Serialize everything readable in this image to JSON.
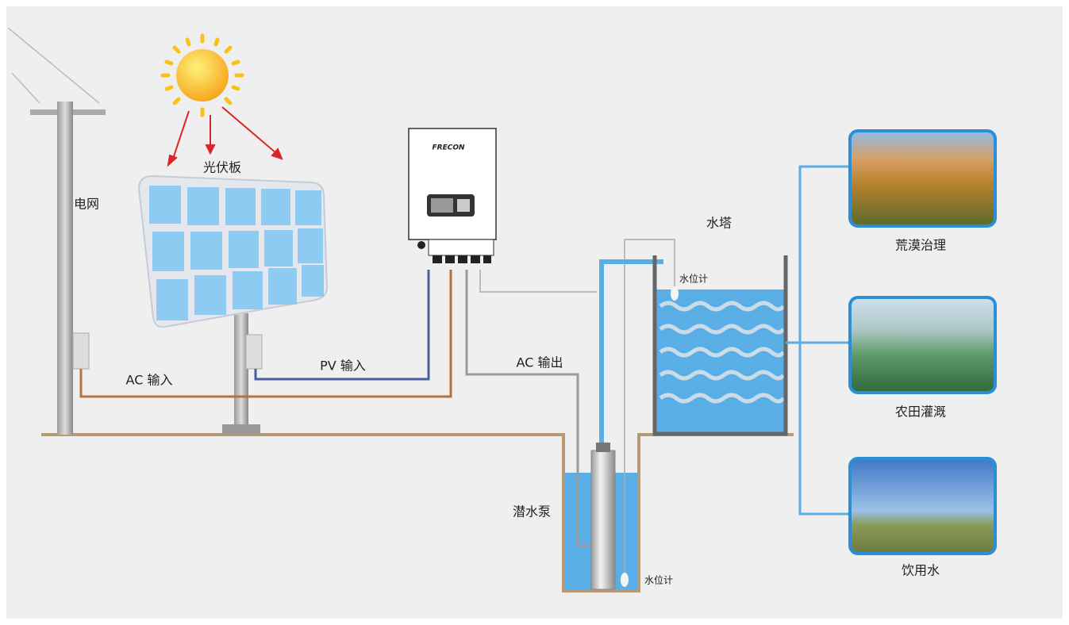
{
  "labels": {
    "grid": "电网",
    "pv_panel": "光伏板",
    "brand": "FRECON",
    "pv_input": "PV 输入",
    "ac_input": "AC 输入",
    "ac_output": "AC 输出",
    "water_tower": "水塔",
    "level_sensor_tower": "水位计",
    "pump": "潜水泵",
    "level_sensor_well": "水位计"
  },
  "applications": [
    {
      "label": "荒漠治理"
    },
    {
      "label": "农田灌溉"
    },
    {
      "label": "饮用水"
    }
  ]
}
